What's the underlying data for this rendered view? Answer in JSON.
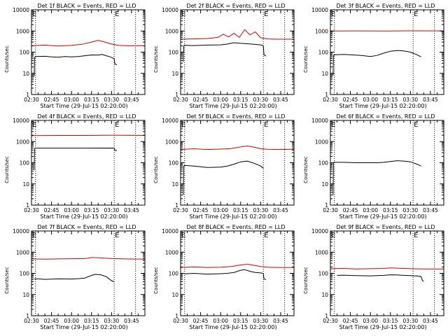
{
  "figure": {
    "panel_titles": [
      "Det 1f BLACK = Events, RED = LLD",
      "Det 2f BLACK = Events, RED = LLD",
      "Det 3f BLACK = Events, RED = LLD",
      "Det 4f BLACK = Events, RED = LLD",
      "Det 5f BLACK = Events, RED = LLD",
      "Det 6f BLACK = Events, RED = LLD",
      "Det 7f BLACK = Events, RED = LLD",
      "Det 8f BLACK = Events, RED = LLD",
      "Det 9f BLACK = Events, RED = LLD"
    ],
    "ylabel": "Counts/sec",
    "xlabel": "Start Time (29-Jul-15 02:20:00)",
    "xtick_labels": [
      "02:30",
      "02:45",
      "03:00",
      "03:15",
      "03:30",
      "03:45"
    ],
    "ytick_labels": [
      "1",
      "10",
      "100",
      "1000",
      "10000"
    ],
    "corner_mark": "E"
  },
  "colors": {
    "events": "#000000",
    "lld": "#dd0000",
    "axes": "#000000"
  },
  "chart_data": [
    {
      "type": "line",
      "title": "Det 1f BLACK = Events, RED = LLD",
      "xlabel": "Start Time (29-Jul-15 02:20:00)",
      "ylabel": "Counts/sec",
      "x_unit": "minutes after 02:20:00",
      "xlim": [
        10,
        95
      ],
      "ylim": [
        1,
        10000
      ],
      "yscale": "log",
      "x_ticks": [
        10,
        25,
        40,
        55,
        70,
        85
      ],
      "vlines": [
        13,
        72,
        88
      ],
      "series": [
        {
          "name": "Events",
          "color": "#000000",
          "x": [
            12,
            12.3,
            13,
            20,
            25,
            30,
            35,
            40,
            45,
            50,
            55,
            60,
            63,
            66,
            69,
            72,
            72.5,
            74
          ],
          "y": [
            7,
            55,
            62,
            64,
            60,
            58,
            62,
            60,
            62,
            68,
            74,
            72,
            78,
            68,
            60,
            48,
            28,
            25
          ]
        },
        {
          "name": "LLD",
          "color": "#dd0000",
          "x": [
            10,
            20,
            30,
            40,
            48,
            55,
            60,
            65,
            70,
            75,
            82,
            95
          ],
          "y": [
            200,
            215,
            195,
            210,
            235,
            300,
            360,
            300,
            240,
            210,
            200,
            200
          ]
        }
      ]
    },
    {
      "type": "line",
      "title": "Det 2f BLACK = Events, RED = LLD",
      "xlabel": "Start Time (29-Jul-15 02:20:00)",
      "ylabel": "Counts/sec",
      "x_unit": "minutes after 02:20:00",
      "xlim": [
        10,
        95
      ],
      "ylim": [
        1,
        10000
      ],
      "yscale": "log",
      "x_ticks": [
        10,
        25,
        40,
        55,
        70,
        85
      ],
      "vlines": [
        13,
        72,
        88
      ],
      "series": [
        {
          "name": "Events",
          "color": "#000000",
          "x": [
            12,
            12.3,
            13,
            20,
            30,
            40,
            45,
            50,
            55,
            60,
            65,
            70,
            72,
            72.5,
            74
          ],
          "y": [
            35,
            200,
            210,
            205,
            215,
            220,
            240,
            280,
            260,
            250,
            235,
            220,
            200,
            75,
            65
          ]
        },
        {
          "name": "LLD",
          "color": "#dd0000",
          "x": [
            10,
            20,
            30,
            38,
            42,
            46,
            50,
            54,
            58,
            62,
            66,
            70,
            75,
            82,
            95
          ],
          "y": [
            410,
            420,
            440,
            500,
            700,
            520,
            780,
            500,
            1150,
            650,
            900,
            480,
            420,
            410,
            410
          ]
        }
      ]
    },
    {
      "type": "line",
      "title": "Det 3f BLACK = Events, RED = LLD",
      "xlabel": "Start Time (29-Jul-15 02:20:00)",
      "ylabel": "Counts/sec",
      "x_unit": "minutes after 02:20:00",
      "xlim": [
        10,
        95
      ],
      "ylim": [
        1,
        10000
      ],
      "yscale": "log",
      "x_ticks": [
        10,
        25,
        40,
        55,
        70,
        85
      ],
      "vlines": [
        13,
        72,
        88
      ],
      "series": [
        {
          "name": "Events",
          "color": "#000000",
          "x": [
            12,
            12.3,
            13,
            20,
            30,
            35,
            40,
            45,
            50,
            55,
            60,
            65,
            70,
            75,
            78
          ],
          "y": [
            8,
            70,
            75,
            78,
            72,
            68,
            62,
            70,
            90,
            110,
            120,
            115,
            100,
            75,
            60
          ]
        },
        {
          "name": "LLD",
          "color": "#dd0000",
          "x": [
            10,
            30,
            50,
            70,
            95
          ],
          "y": [
            1000,
            1010,
            1000,
            1020,
            1010
          ]
        }
      ]
    },
    {
      "type": "line",
      "title": "Det 4f BLACK = Events, RED = LLD",
      "xlabel": "Start Time (29-Jul-15 02:20:00)",
      "ylabel": "Counts/sec",
      "x_unit": "minutes after 02:20:00",
      "xlim": [
        10,
        95
      ],
      "ylim": [
        1,
        10000
      ],
      "yscale": "log",
      "x_ticks": [
        10,
        25,
        40,
        55,
        70,
        85
      ],
      "vlines": [
        13,
        72,
        88
      ],
      "series": [
        {
          "name": "Events",
          "color": "#000000",
          "x": [
            12,
            12.3,
            13,
            30,
            50,
            70,
            72,
            72.5,
            74
          ],
          "y": [
            45,
            480,
            490,
            490,
            490,
            495,
            490,
            380,
            380
          ]
        },
        {
          "name": "LLD",
          "color": "#dd0000",
          "x": [
            10,
            30,
            50,
            70,
            95
          ],
          "y": [
            1900,
            1950,
            1950,
            2000,
            1950
          ]
        }
      ]
    },
    {
      "type": "line",
      "title": "Det 5f BLACK = Events, RED = LLD",
      "xlabel": "Start Time (29-Jul-15 02:20:00)",
      "ylabel": "Counts/sec",
      "x_unit": "minutes after 02:20:00",
      "xlim": [
        10,
        95
      ],
      "ylim": [
        1,
        10000
      ],
      "yscale": "log",
      "x_ticks": [
        10,
        25,
        40,
        55,
        70,
        85
      ],
      "vlines": [
        13,
        72,
        88
      ],
      "series": [
        {
          "name": "Events",
          "color": "#000000",
          "x": [
            12,
            12.3,
            13,
            20,
            30,
            40,
            45,
            50,
            55,
            60,
            65,
            70,
            72
          ],
          "y": [
            3,
            70,
            75,
            70,
            60,
            62,
            70,
            85,
            110,
            120,
            95,
            70,
            55
          ]
        },
        {
          "name": "LLD",
          "color": "#dd0000",
          "x": [
            10,
            20,
            30,
            40,
            48,
            55,
            60,
            65,
            70,
            75,
            82,
            95
          ],
          "y": [
            420,
            460,
            420,
            440,
            470,
            560,
            620,
            550,
            460,
            430,
            420,
            430
          ]
        }
      ]
    },
    {
      "type": "line",
      "title": "Det 6f BLACK = Events, RED = LLD",
      "xlabel": "Start Time (29-Jul-15 02:20:00)",
      "ylabel": "Counts/sec",
      "x_unit": "minutes after 02:20:00",
      "xlim": [
        10,
        95
      ],
      "ylim": [
        1,
        10000
      ],
      "yscale": "log",
      "x_ticks": [
        10,
        25,
        40,
        55,
        70,
        85
      ],
      "vlines": [
        13,
        72,
        88
      ],
      "series": [
        {
          "name": "Events",
          "color": "#000000",
          "x": [
            12,
            12.3,
            13,
            20,
            30,
            40,
            45,
            50,
            55,
            60,
            65,
            70,
            75,
            78
          ],
          "y": [
            3,
            100,
            105,
            105,
            100,
            100,
            100,
            105,
            115,
            125,
            120,
            110,
            85,
            70
          ]
        }
      ]
    },
    {
      "type": "line",
      "title": "Det 7f BLACK = Events, RED = LLD",
      "xlabel": "Start Time (29-Jul-15 02:20:00)",
      "ylabel": "Counts/sec",
      "x_unit": "minutes after 02:20:00",
      "xlim": [
        10,
        95
      ],
      "ylim": [
        1,
        10000
      ],
      "yscale": "log",
      "x_ticks": [
        10,
        25,
        40,
        55,
        70,
        85
      ],
      "vlines": [
        13,
        72,
        88
      ],
      "series": [
        {
          "name": "Events",
          "color": "#000000",
          "x": [
            12,
            15,
            20,
            30,
            40,
            45,
            50,
            55,
            58,
            62,
            66,
            70,
            72
          ],
          "y": [
            55,
            55,
            52,
            55,
            54,
            56,
            60,
            80,
            90,
            85,
            70,
            45,
            40
          ]
        },
        {
          "name": "LLD",
          "color": "#dd0000",
          "x": [
            10,
            20,
            30,
            40,
            50,
            55,
            60,
            65,
            70,
            80,
            95
          ],
          "y": [
            480,
            470,
            480,
            490,
            500,
            560,
            540,
            520,
            500,
            480,
            470
          ]
        }
      ]
    },
    {
      "type": "line",
      "title": "Det 8f BLACK = Events, RED = LLD",
      "xlabel": "Start Time (29-Jul-15 02:20:00)",
      "ylabel": "Counts/sec",
      "x_unit": "minutes after 02:20:00",
      "xlim": [
        10,
        95
      ],
      "ylim": [
        1,
        10000
      ],
      "yscale": "log",
      "x_ticks": [
        10,
        25,
        40,
        55,
        70,
        85
      ],
      "vlines": [
        13,
        72,
        88
      ],
      "series": [
        {
          "name": "Events",
          "color": "#000000",
          "x": [
            13,
            20,
            30,
            40,
            45,
            50,
            55,
            58,
            62,
            66,
            70,
            72,
            72.5,
            74
          ],
          "y": [
            95,
            100,
            92,
            96,
            100,
            110,
            140,
            150,
            125,
            110,
            105,
            100,
            55,
            50
          ]
        },
        {
          "name": "LLD",
          "color": "#dd0000",
          "x": [
            10,
            20,
            30,
            40,
            48,
            55,
            60,
            65,
            70,
            75,
            82,
            95
          ],
          "y": [
            190,
            200,
            190,
            195,
            210,
            250,
            270,
            240,
            210,
            195,
            190,
            190
          ]
        }
      ]
    },
    {
      "type": "line",
      "title": "Det 9f BLACK = Events, RED = LLD",
      "xlabel": "Start Time (29-Jul-15 02:20:00)",
      "ylabel": "Counts/sec",
      "x_unit": "minutes after 02:20:00",
      "xlim": [
        10,
        95
      ],
      "ylim": [
        1,
        10000
      ],
      "yscale": "log",
      "x_ticks": [
        10,
        25,
        40,
        55,
        70,
        85
      ],
      "vlines": [
        13,
        72,
        88
      ],
      "series": [
        {
          "name": "Events",
          "color": "#000000",
          "x": [
            15,
            20,
            30,
            40,
            50,
            55,
            60,
            65,
            70,
            75,
            78,
            79,
            80
          ],
          "y": [
            80,
            82,
            78,
            76,
            80,
            85,
            84,
            80,
            78,
            75,
            70,
            45,
            42
          ]
        },
        {
          "name": "LLD",
          "color": "#dd0000",
          "x": [
            10,
            20,
            30,
            40,
            50,
            55,
            60,
            65,
            70,
            80,
            95
          ],
          "y": [
            165,
            170,
            160,
            165,
            170,
            180,
            175,
            170,
            165,
            160,
            160
          ]
        }
      ]
    }
  ]
}
